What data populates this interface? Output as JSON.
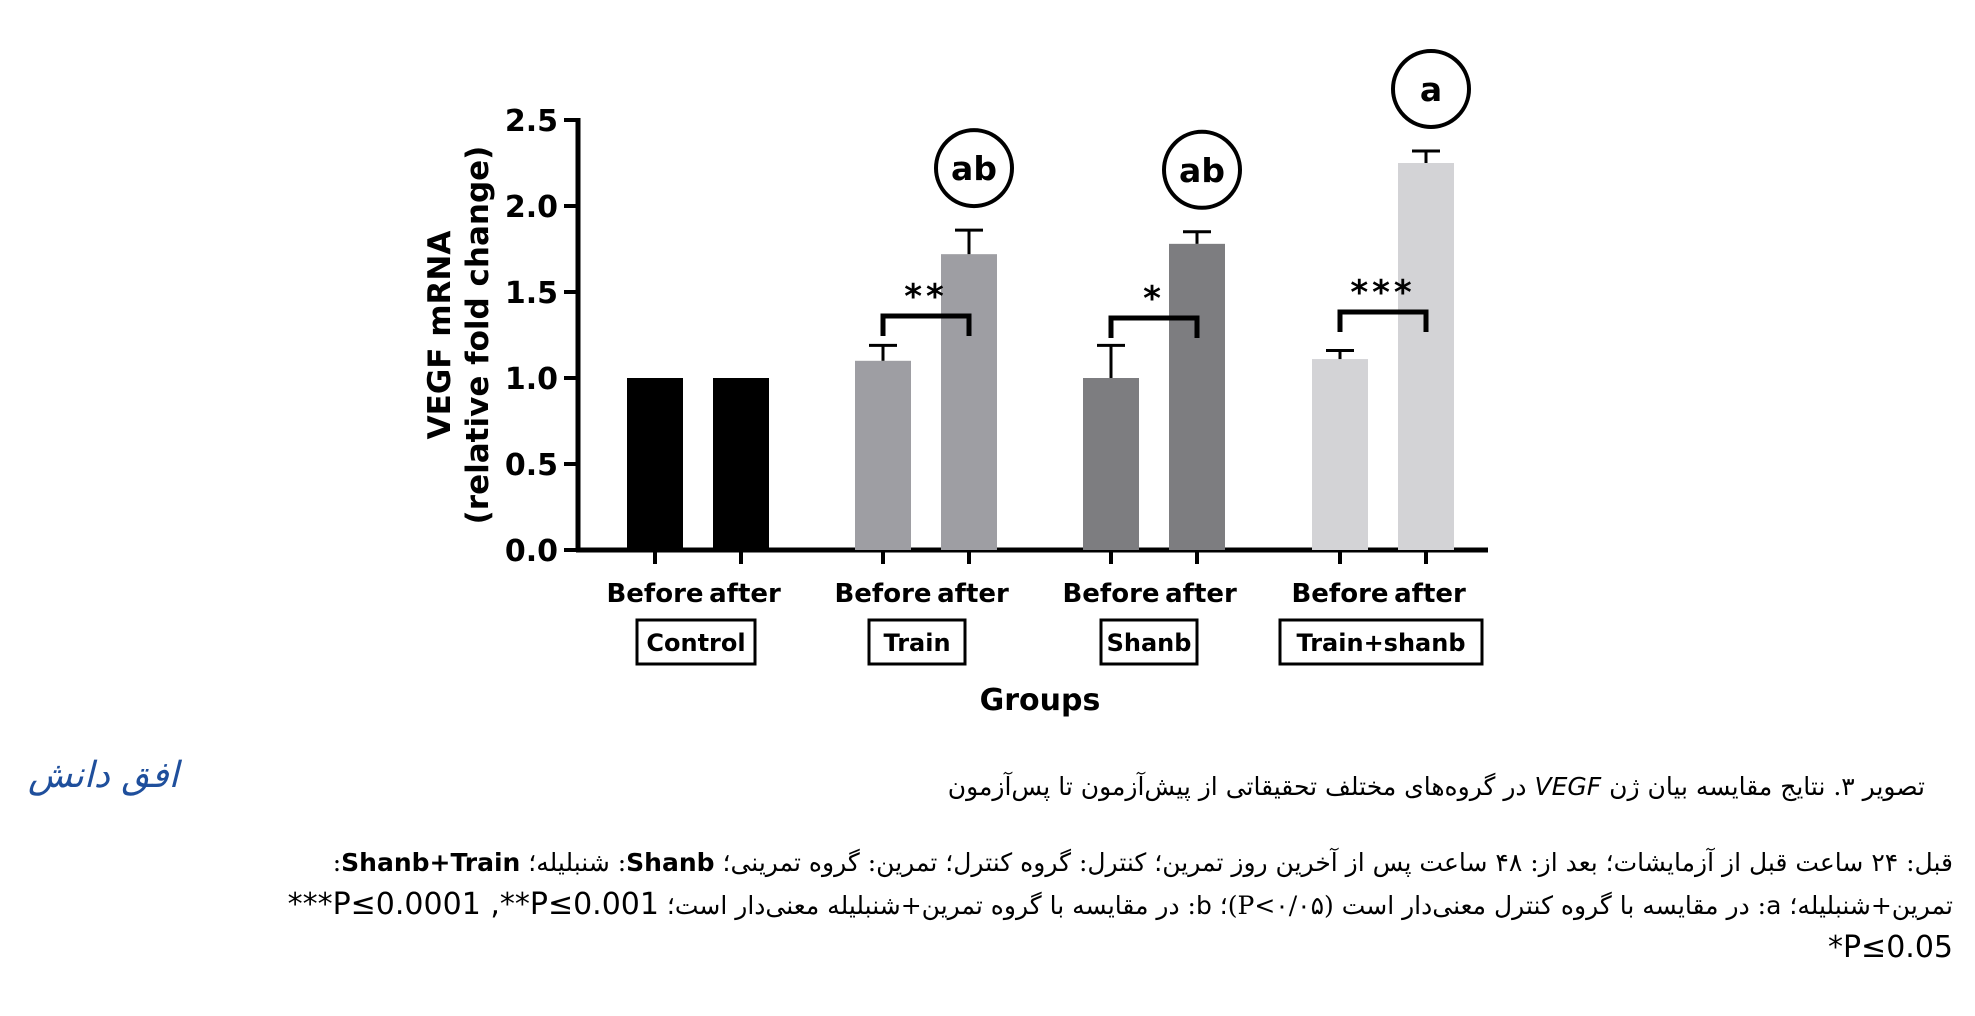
{
  "chart_data": {
    "type": "bar",
    "xlabel": "Groups",
    "ylabel_line1": "VEGF mRNA",
    "ylabel_line2": "(relative fold change)",
    "ylim": [
      0,
      2.5
    ],
    "yticks": [
      "0.0",
      "0.5",
      "1.0",
      "1.5",
      "2.0",
      "2.5"
    ],
    "grid": false,
    "groups": [
      {
        "name": "Control",
        "tick_labels": [
          "Before",
          "after"
        ],
        "color": "#000000",
        "values": [
          1.0,
          1.0
        ],
        "errors": [
          0,
          0
        ],
        "letters": [
          "",
          ""
        ],
        "significance": ""
      },
      {
        "name": "Train",
        "tick_labels": [
          "Before",
          "after"
        ],
        "color": "#9e9ea3",
        "values": [
          1.1,
          1.72
        ],
        "errors": [
          0.09,
          0.14
        ],
        "letters": [
          "",
          "ab"
        ],
        "significance": "**"
      },
      {
        "name": "Shanb",
        "tick_labels": [
          "Before",
          "after"
        ],
        "color": "#7d7d80",
        "values": [
          1.0,
          1.78
        ],
        "errors": [
          0.19,
          0.07
        ],
        "letters": [
          "",
          "ab"
        ],
        "significance": "*"
      },
      {
        "name": "Train+shanb",
        "tick_labels": [
          "Before",
          "after"
        ],
        "color": "#d3d3d6",
        "values": [
          1.11,
          2.25
        ],
        "errors": [
          0.05,
          0.07
        ],
        "letters": [
          "",
          "a"
        ],
        "significance": "***"
      }
    ]
  },
  "caption": {
    "title_before": "تصویر ۳. نتایج مقایسه بیان ژن ",
    "title_gene": "VEGF",
    "title_after": " در گروه‌های مختلف تحقیقاتی از پیش‌آزمون تا پس‌آزمون",
    "logo": "افق دانش",
    "line1_a": "قبل: ۲۴ ساعت قبل از آزمایشات؛ بعد از: ۴۸ ساعت پس از آخرین روز تمرین؛ کنترل: گروه کنترل؛ تمرین: گروه تمرینی؛ ",
    "line1_shanb": "Shanb",
    "line1_b": ": شنبلیله؛ ",
    "line1_st": "Shanb+Train",
    "line1_c": ":",
    "line2_a": "تمرین+شنبلیله؛ ",
    "line2_a_key": "a",
    "line2_b": ": در مقایسه با گروه کنترل معنی‌دار است (P<۰/۰۵)؛ ",
    "line2_b_key": "b",
    "line2_c": ": در مقایسه با گروه تمرین+شنبلیله معنی‌دار است؛ ",
    "line2_p": "***P≤0.0001 ,**P≤0.001",
    "line3_p": "*P≤0.05"
  }
}
